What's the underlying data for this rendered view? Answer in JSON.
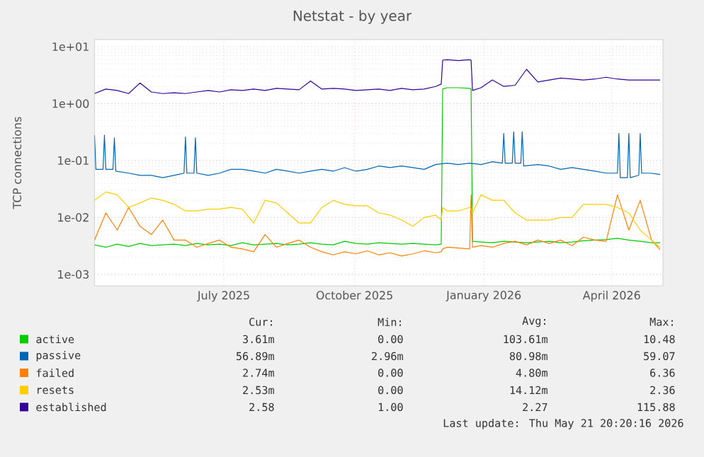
{
  "chart_data": {
    "type": "line",
    "title": "Netstat - by year",
    "ylabel": "TCP connections",
    "log": "y",
    "grid": true,
    "legend": "bottom",
    "marker": "none",
    "line_style": "solid",
    "xlim": [
      "2025-04-16",
      "2026-05-21"
    ],
    "ylim": [
      0.00063,
      13.3
    ],
    "xticks": [
      {
        "value": "2025-07-16",
        "label": "July 2025"
      },
      {
        "value": "2025-10-16",
        "label": "October 2025"
      },
      {
        "value": "2026-01-15",
        "label": "January 2026"
      },
      {
        "value": "2026-04-15",
        "label": "April 2026"
      }
    ],
    "yticks": [
      {
        "value": 0.001,
        "label": "1e-03"
      },
      {
        "value": 0.01,
        "label": "1e-02"
      },
      {
        "value": 0.1,
        "label": "1e-01"
      },
      {
        "value": 1,
        "label": "1e+00"
      },
      {
        "value": 10,
        "label": "1e+01"
      }
    ],
    "x": [
      "2025-04-16",
      "2025-04-24",
      "2025-05-02",
      "2025-05-10",
      "2025-05-18",
      "2025-05-26",
      "2025-06-03",
      "2025-06-11",
      "2025-06-19",
      "2025-06-27",
      "2025-07-05",
      "2025-07-13",
      "2025-07-21",
      "2025-07-29",
      "2025-08-06",
      "2025-08-14",
      "2025-08-22",
      "2025-08-30",
      "2025-09-07",
      "2025-09-15",
      "2025-09-23",
      "2025-10-01",
      "2025-10-09",
      "2025-10-17",
      "2025-10-25",
      "2025-11-02",
      "2025-11-10",
      "2025-11-18",
      "2025-11-26",
      "2025-12-04",
      "2025-12-12",
      "2025-12-16",
      "2025-12-17",
      "2025-12-20",
      "2025-12-28",
      "2026-01-05",
      "2026-01-06",
      "2026-01-07",
      "2026-01-13",
      "2026-01-21",
      "2026-01-29",
      "2026-02-06",
      "2026-02-14",
      "2026-02-22",
      "2026-03-02",
      "2026-03-10",
      "2026-03-18",
      "2026-03-26",
      "2026-04-03",
      "2026-04-11",
      "2026-04-19",
      "2026-04-27",
      "2026-05-05",
      "2026-05-13",
      "2026-05-19"
    ],
    "series": [
      {
        "name": "active",
        "color": "#00cc00",
        "values": [
          0.0033,
          0.003,
          0.0034,
          0.0031,
          0.0035,
          0.0032,
          0.0033,
          0.0034,
          0.0032,
          0.0035,
          0.0033,
          0.0034,
          0.0032,
          0.0036,
          0.0033,
          0.0034,
          0.0035,
          0.0033,
          0.0034,
          0.0036,
          0.0034,
          0.0033,
          0.0038,
          0.0035,
          0.0034,
          0.0036,
          0.0035,
          0.0034,
          0.0035,
          0.0034,
          0.0033,
          0.0034,
          1.8,
          1.9,
          1.9,
          1.85,
          1.8,
          0.0038,
          0.0037,
          0.0036,
          0.0038,
          0.0037,
          0.0036,
          0.0037,
          0.0038,
          0.0036,
          0.0037,
          0.0039,
          0.004,
          0.0041,
          0.0043,
          0.004,
          0.0038,
          0.0036,
          0.0036
        ]
      },
      {
        "name": "passive",
        "color": "#0066b3",
        "x": [
          "2025-04-16",
          "2025-04-17",
          "2025-04-22",
          "2025-04-23",
          "2025-04-24",
          "2025-04-29",
          "2025-04-30",
          "2025-05-01",
          "2025-05-10",
          "2025-05-18",
          "2025-05-26",
          "2025-06-03",
          "2025-06-11",
          "2025-06-18",
          "2025-06-19",
          "2025-06-20",
          "2025-06-25",
          "2025-06-26",
          "2025-06-27",
          "2025-07-05",
          "2025-07-13",
          "2025-07-21",
          "2025-07-29",
          "2025-08-06",
          "2025-08-14",
          "2025-08-22",
          "2025-08-30",
          "2025-09-07",
          "2025-09-15",
          "2025-09-23",
          "2025-10-01",
          "2025-10-09",
          "2025-10-17",
          "2025-10-25",
          "2025-11-02",
          "2025-11-10",
          "2025-11-18",
          "2025-11-26",
          "2025-12-04",
          "2025-12-12",
          "2025-12-20",
          "2025-12-28",
          "2026-01-05",
          "2026-01-13",
          "2026-01-21",
          "2026-01-28",
          "2026-01-29",
          "2026-01-30",
          "2026-02-04",
          "2026-02-05",
          "2026-02-06",
          "2026-02-10",
          "2026-02-11",
          "2026-02-12",
          "2026-02-22",
          "2026-03-02",
          "2026-03-10",
          "2026-03-18",
          "2026-03-26",
          "2026-04-03",
          "2026-04-11",
          "2026-04-19",
          "2026-04-20",
          "2026-04-21",
          "2026-04-26",
          "2026-04-27",
          "2026-04-28",
          "2026-05-04",
          "2026-05-05",
          "2026-05-06",
          "2026-05-12",
          "2026-05-19"
        ],
        "values": [
          0.28,
          0.07,
          0.07,
          0.28,
          0.07,
          0.07,
          0.25,
          0.065,
          0.06,
          0.055,
          0.055,
          0.05,
          0.055,
          0.06,
          0.26,
          0.06,
          0.06,
          0.25,
          0.06,
          0.055,
          0.06,
          0.07,
          0.07,
          0.065,
          0.06,
          0.07,
          0.065,
          0.06,
          0.065,
          0.07,
          0.065,
          0.075,
          0.065,
          0.07,
          0.08,
          0.075,
          0.08,
          0.075,
          0.07,
          0.085,
          0.09,
          0.085,
          0.09,
          0.085,
          0.095,
          0.09,
          0.3,
          0.09,
          0.09,
          0.32,
          0.09,
          0.09,
          0.32,
          0.08,
          0.085,
          0.08,
          0.07,
          0.075,
          0.07,
          0.065,
          0.06,
          0.06,
          0.3,
          0.05,
          0.05,
          0.3,
          0.05,
          0.055,
          0.3,
          0.06,
          0.06,
          0.057
        ]
      },
      {
        "name": "failed",
        "color": "#ff8000",
        "values": [
          0.004,
          0.012,
          0.006,
          0.015,
          0.007,
          0.005,
          0.009,
          0.004,
          0.004,
          0.003,
          0.0035,
          0.004,
          0.003,
          0.0028,
          0.0025,
          0.005,
          0.003,
          0.0035,
          0.004,
          0.003,
          0.0025,
          0.0022,
          0.0025,
          0.0023,
          0.0026,
          0.0022,
          0.0024,
          0.0021,
          0.0023,
          0.0026,
          0.0024,
          0.0025,
          0.0028,
          0.003,
          0.0029,
          0.0028,
          0.025,
          0.003,
          0.0032,
          0.003,
          0.0035,
          0.0038,
          0.0033,
          0.004,
          0.0035,
          0.004,
          0.0032,
          0.0045,
          0.004,
          0.0038,
          0.025,
          0.006,
          0.02,
          0.004,
          0.0027
        ]
      },
      {
        "name": "resets",
        "color": "#ffcc00",
        "values": [
          0.02,
          0.028,
          0.025,
          0.015,
          0.018,
          0.022,
          0.02,
          0.017,
          0.013,
          0.013,
          0.014,
          0.014,
          0.015,
          0.014,
          0.008,
          0.02,
          0.018,
          0.012,
          0.008,
          0.008,
          0.015,
          0.02,
          0.017,
          0.016,
          0.016,
          0.012,
          0.011,
          0.009,
          0.007,
          0.01,
          0.011,
          0.009,
          0.015,
          0.013,
          0.013,
          0.015,
          0.014,
          0.012,
          0.025,
          0.02,
          0.02,
          0.012,
          0.009,
          0.009,
          0.009,
          0.01,
          0.01,
          0.017,
          0.017,
          0.017,
          0.015,
          0.012,
          0.006,
          0.004,
          0.003
        ]
      },
      {
        "name": "established",
        "color": "#330099",
        "values": [
          1.5,
          1.8,
          1.7,
          1.5,
          2.3,
          1.6,
          1.5,
          1.55,
          1.5,
          1.6,
          1.7,
          1.6,
          1.75,
          1.7,
          1.8,
          1.7,
          1.85,
          1.8,
          1.75,
          2.5,
          1.8,
          1.85,
          1.8,
          1.7,
          1.75,
          1.8,
          1.7,
          1.85,
          1.75,
          1.8,
          2.0,
          2.2,
          5.8,
          5.9,
          5.7,
          5.9,
          5.8,
          1.7,
          1.9,
          2.6,
          2.0,
          2.1,
          4.0,
          2.4,
          2.6,
          2.8,
          2.7,
          2.6,
          2.7,
          2.9,
          2.7,
          2.6,
          2.6,
          2.6,
          2.6
        ]
      }
    ],
    "annotations": [
      "Cur:",
      "Min:",
      "Avg:",
      "Max:",
      "3.61m",
      "0.00",
      "103.61m",
      "10.48",
      "56.89m",
      "2.96m",
      "80.98m",
      "59.07",
      "2.74m",
      "0.00",
      "4.80m",
      "6.36",
      "2.53m",
      "0.00",
      "14.12m",
      "2.36",
      "2.58",
      "1.00",
      "2.27",
      "115.88",
      "Last update: Thu May 21 20:20:16 2026"
    ]
  }
}
